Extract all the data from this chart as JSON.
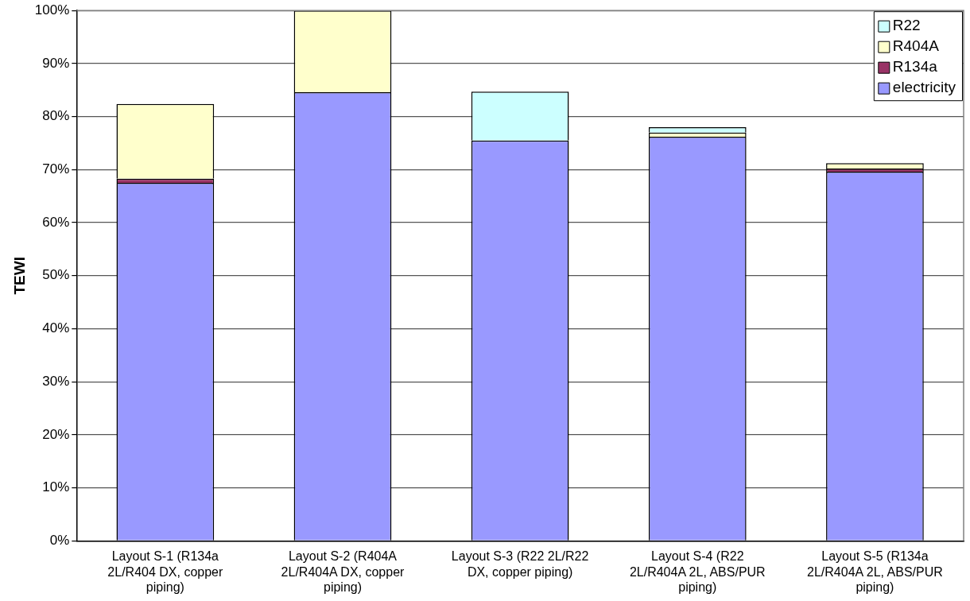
{
  "chart_data": {
    "type": "bar",
    "stacked": true,
    "ylabel": "TEWI",
    "categories": [
      "Layout S-1 (R134a 2L/R404 DX, copper piping)",
      "Layout S-2 (R404A 2L/R404A DX, copper piping)",
      "Layout S-3 (R22 2L/R22 DX, copper piping)",
      "Layout S-4 (R22 2L/R404A 2L, ABS/PUR piping)",
      "Layout S-5 (R134a 2L/R404A 2L, ABS/PUR piping)"
    ],
    "series": [
      {
        "name": "electricity",
        "color": "#9999ff",
        "values": [
          67.5,
          84.6,
          75.5,
          76.2,
          69.6
        ]
      },
      {
        "name": "R134a",
        "color": "#993366",
        "values": [
          0.8,
          0,
          0,
          0,
          0.6
        ]
      },
      {
        "name": "R404A",
        "color": "#ffffcc",
        "values": [
          14.1,
          15.4,
          0,
          0.8,
          1.0
        ]
      },
      {
        "name": "R22",
        "color": "#ccffff",
        "values": [
          0,
          0,
          9.2,
          1.0,
          0
        ]
      }
    ],
    "ylim": [
      0,
      100
    ],
    "yticks": [
      {
        "value": 0,
        "label": "0%"
      },
      {
        "value": 10,
        "label": "10%"
      },
      {
        "value": 20,
        "label": "20%"
      },
      {
        "value": 30,
        "label": "30%"
      },
      {
        "value": 40,
        "label": "40%"
      },
      {
        "value": 50,
        "label": "50%"
      },
      {
        "value": 60,
        "label": "60%"
      },
      {
        "value": 70,
        "label": "70%"
      },
      {
        "value": 80,
        "label": "80%"
      },
      {
        "value": 90,
        "label": "90%"
      },
      {
        "value": 100,
        "label": "100%"
      }
    ],
    "grid": "y",
    "legend": "top right"
  }
}
